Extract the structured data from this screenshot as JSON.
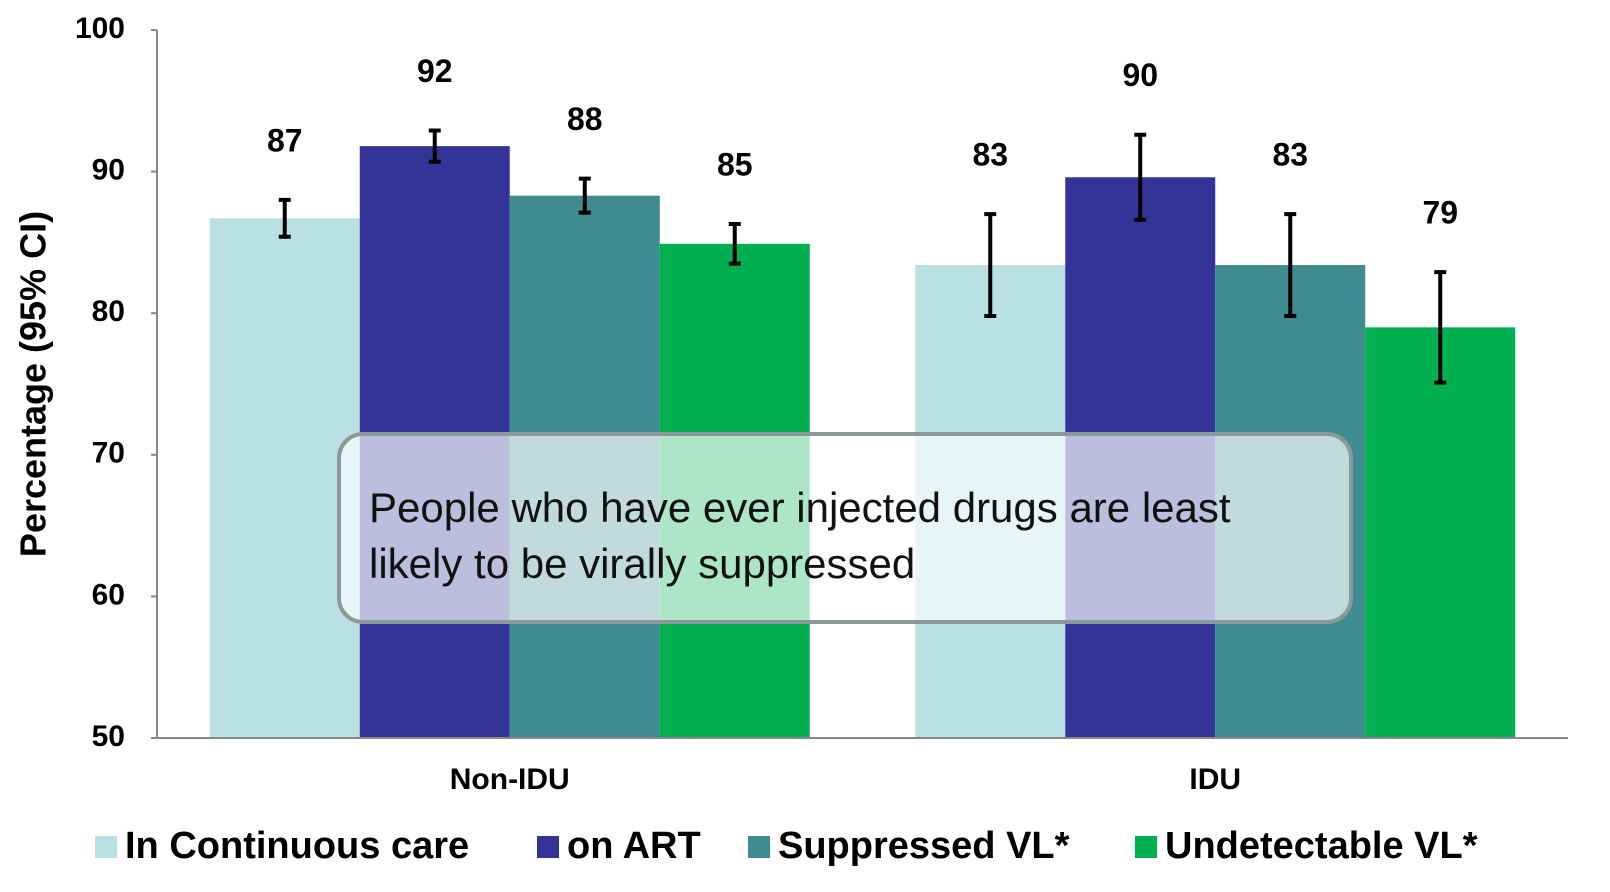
{
  "chart_data": {
    "type": "bar",
    "y_label": "Percentage (95% CI)",
    "annotation": "People who have ever injected drugs are least likely to be virally suppressed",
    "categories": [
      "Non-IDU",
      "IDU"
    ],
    "ylim": [
      50,
      100
    ],
    "yticks": [
      50,
      60,
      70,
      80,
      90,
      100
    ],
    "grid": false,
    "series": [
      {
        "name": "In Continuous care",
        "color": "#b9e0e2",
        "values": [
          86.7,
          83.4
        ],
        "errors": [
          1.3,
          3.6
        ],
        "value_labels": [
          "87",
          "83"
        ]
      },
      {
        "name": "on ART",
        "color": "#343498",
        "values": [
          91.8,
          89.6
        ],
        "errors": [
          1.1,
          3.0
        ],
        "value_labels": [
          "92",
          "90"
        ]
      },
      {
        "name": "Suppressed VL*",
        "color": "#3e8c8f",
        "values": [
          88.3,
          83.4
        ],
        "errors": [
          1.2,
          3.6
        ],
        "value_labels": [
          "88",
          "83"
        ]
      },
      {
        "name": "Undetectable VL*",
        "color": "#00b050",
        "values": [
          84.9,
          79.0
        ],
        "errors": [
          1.4,
          3.9
        ],
        "value_labels": [
          "85",
          "79"
        ]
      }
    ]
  }
}
